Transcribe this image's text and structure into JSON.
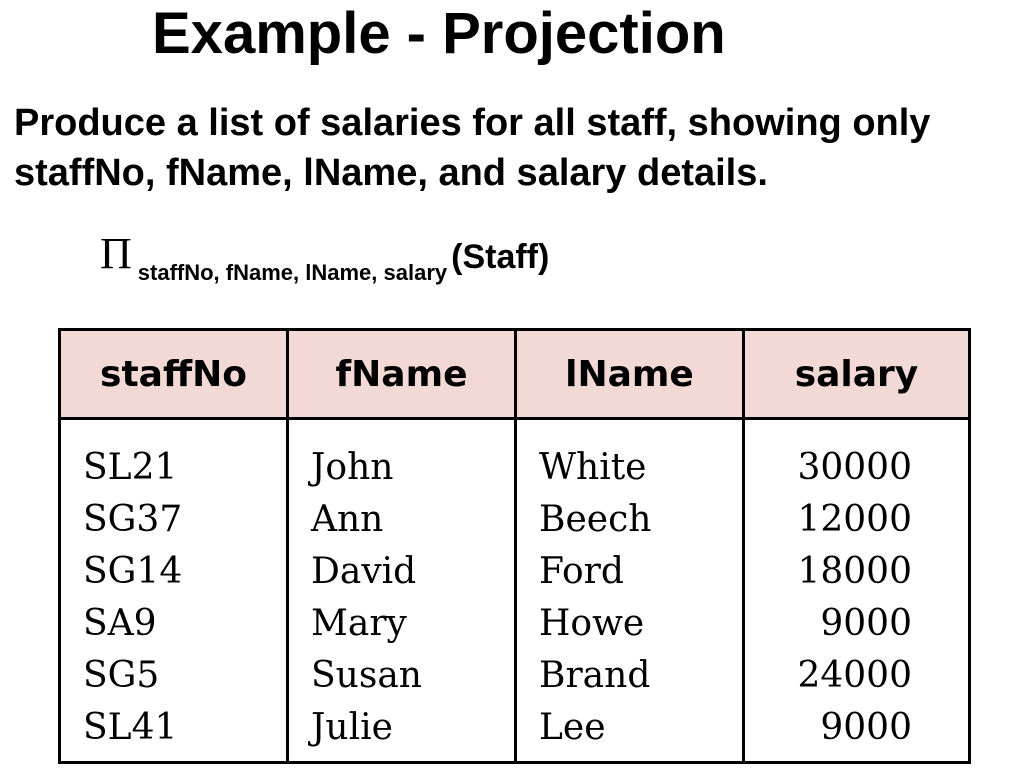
{
  "slide": {
    "title": "Example - Projection",
    "task_line1": "Produce a list of salaries for all staff, showing only",
    "task_line2": "staffNo, fName, lName, and salary details.",
    "expression": {
      "operator": "Π",
      "subscript": "staffNo, fName, lName, salary",
      "relation": "(Staff)"
    }
  },
  "table": {
    "header_color": "#f2d9d5",
    "columns": [
      "staffNo",
      "fName",
      "lName",
      "salary"
    ],
    "rows": [
      [
        "SL21",
        "John",
        "White",
        "30000"
      ],
      [
        "SG37",
        "Ann",
        "Beech",
        "12000"
      ],
      [
        "SG14",
        "David",
        "Ford",
        "18000"
      ],
      [
        "SA9",
        "Mary",
        "Howe",
        "9000"
      ],
      [
        "SG5",
        "Susan",
        "Brand",
        "24000"
      ],
      [
        "SL41",
        "Julie",
        "Lee",
        "9000"
      ]
    ]
  }
}
